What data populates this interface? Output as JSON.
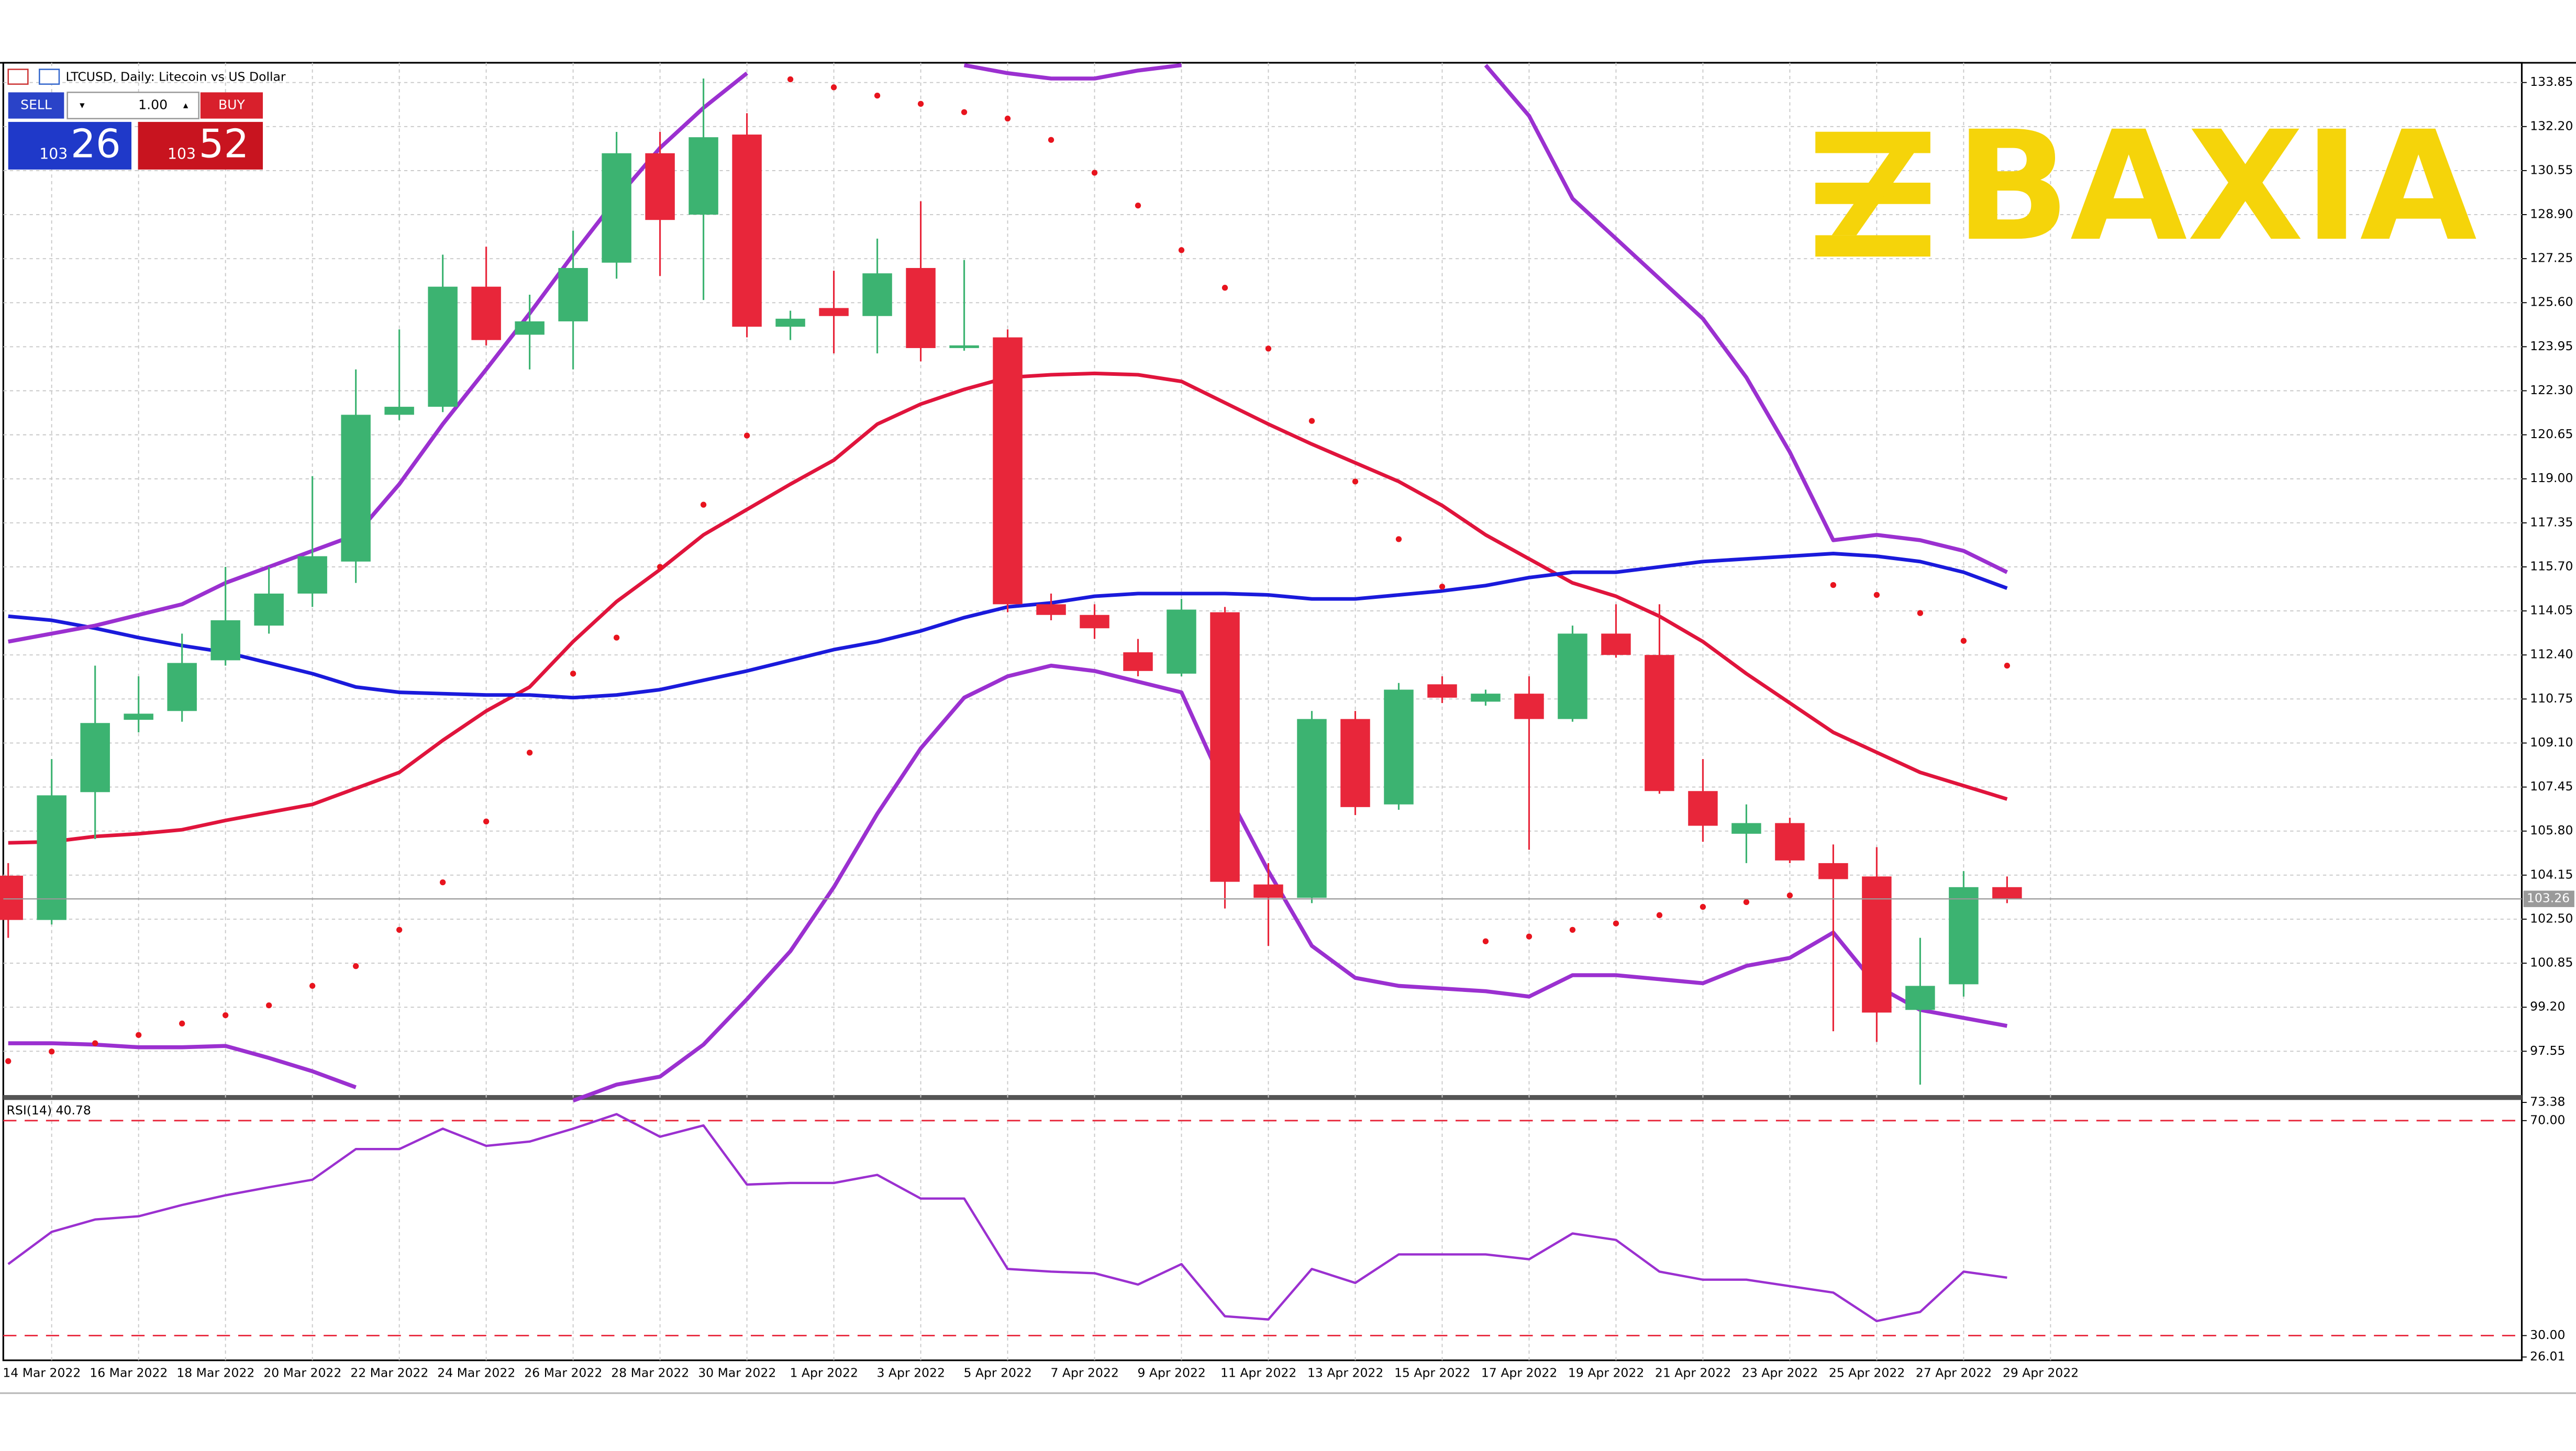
{
  "header": {
    "title": "LTCUSD, Daily:  Litecoin vs US Dollar"
  },
  "trade_panel": {
    "sell": "SELL",
    "buy": "BUY",
    "volume": "1.00",
    "bid_big": "103",
    "bid_small": "26",
    "ask_big": "103",
    "ask_small": "52"
  },
  "logo": {
    "text": "BAXIA"
  },
  "chart_data": [
    {
      "type": "candlestick",
      "up_color": "#3cb371",
      "down_color": "#e8263a",
      "categories": [
        null,
        "14 Mar 2022",
        null,
        "16 Mar 2022",
        null,
        "18 Mar 2022",
        null,
        "20 Mar 2022",
        null,
        "22 Mar 2022",
        null,
        "24 Mar 2022",
        null,
        "26 Mar 2022",
        null,
        "28 Mar 2022",
        null,
        "30 Mar 2022",
        null,
        "1 Apr 2022",
        null,
        "3 Apr 2022",
        null,
        "5 Apr 2022",
        null,
        "7 Apr 2022",
        null,
        "9 Apr 2022",
        null,
        "11 Apr 2022",
        null,
        "13 Apr 2022",
        null,
        "15 Apr 2022",
        null,
        "17 Apr 2022",
        null,
        "19 Apr 2022",
        null,
        "21 Apr 2022",
        null,
        "23 Apr 2022",
        null,
        "25 Apr 2022",
        null,
        "27 Apr 2022",
        null,
        "29 Apr 2022"
      ],
      "open": [
        104.13,
        102.47,
        107.26,
        109.97,
        110.3,
        112.2,
        113.5,
        114.7,
        115.9,
        121.4,
        121.7,
        126.2,
        124.4,
        124.9,
        127.1,
        131.2,
        128.9,
        131.9,
        124.7,
        125.4,
        125.1,
        126.9,
        123.9,
        124.3,
        114.3,
        113.9,
        112.5,
        111.7,
        114.0,
        103.8,
        103.3,
        110.0,
        106.8,
        111.3,
        110.65,
        110.95,
        110.0,
        113.2,
        112.4,
        107.3,
        105.7,
        106.1,
        104.6,
        104.1,
        99.1,
        100.06,
        103.7,
        null
      ],
      "high": [
        104.6,
        108.5,
        112.0,
        111.6,
        113.2,
        115.7,
        115.7,
        119.1,
        123.1,
        124.6,
        127.4,
        127.7,
        125.9,
        128.3,
        132.0,
        132.0,
        134.0,
        132.7,
        125.3,
        126.8,
        128.0,
        129.4,
        127.2,
        124.6,
        114.7,
        114.3,
        113.0,
        114.5,
        114.2,
        104.6,
        110.3,
        110.3,
        111.35,
        111.6,
        111.1,
        111.6,
        113.5,
        114.3,
        114.3,
        108.5,
        106.8,
        106.3,
        105.3,
        105.2,
        101.8,
        104.3,
        104.1,
        null
      ],
      "low": [
        101.8,
        102.3,
        105.5,
        109.5,
        109.9,
        112.0,
        113.2,
        114.2,
        115.1,
        121.2,
        121.5,
        124.0,
        123.1,
        123.1,
        126.5,
        126.6,
        125.7,
        124.3,
        124.2,
        123.7,
        123.7,
        123.4,
        123.8,
        114.0,
        113.7,
        113.0,
        111.6,
        111.6,
        102.9,
        101.5,
        103.1,
        106.4,
        106.6,
        110.6,
        110.5,
        105.1,
        109.9,
        112.3,
        107.2,
        105.4,
        104.6,
        104.6,
        98.3,
        97.9,
        96.3,
        99.6,
        103.1,
        null
      ],
      "close": [
        102.47,
        107.14,
        109.85,
        110.2,
        112.1,
        113.7,
        114.7,
        116.1,
        121.4,
        121.7,
        126.2,
        124.2,
        124.9,
        126.9,
        131.2,
        128.7,
        131.8,
        124.7,
        125.0,
        125.1,
        126.7,
        123.9,
        124.0,
        114.3,
        113.9,
        113.4,
        111.8,
        114.1,
        103.9,
        103.3,
        110.0,
        106.7,
        111.1,
        110.8,
        110.95,
        110.0,
        113.2,
        112.4,
        107.3,
        106.0,
        106.1,
        104.7,
        104.0,
        99.0,
        100.0,
        103.7,
        103.26,
        null
      ],
      "lines": [
        {
          "color": "#e0143c",
          "width": 2.2,
          "values": [
            105.36,
            105.4,
            105.6,
            105.7,
            105.85,
            106.2,
            106.5,
            106.8,
            107.4,
            108.0,
            109.2,
            110.3,
            111.2,
            112.9,
            114.4,
            115.6,
            116.9,
            117.85,
            118.8,
            119.7,
            121.05,
            121.8,
            122.35,
            122.8,
            122.9,
            122.95,
            122.9,
            122.65,
            121.85,
            121.05,
            120.3,
            119.6,
            118.9,
            118.0,
            116.9,
            116.0,
            115.1,
            114.6,
            113.85,
            112.9,
            111.7,
            110.6,
            109.5,
            108.75,
            108.0,
            107.5,
            107.0,
            null
          ]
        },
        {
          "color": "#1a1adb",
          "width": 2.2,
          "values": [
            113.85,
            113.7,
            113.4,
            113.05,
            112.75,
            112.5,
            112.1,
            111.7,
            111.2,
            111.0,
            110.95,
            110.9,
            110.9,
            110.8,
            110.9,
            111.1,
            111.45,
            111.8,
            112.2,
            112.6,
            112.9,
            113.3,
            113.8,
            114.2,
            114.35,
            114.6,
            114.7,
            114.7,
            114.7,
            114.65,
            114.5,
            114.5,
            114.65,
            114.8,
            115.0,
            115.3,
            115.5,
            115.5,
            115.7,
            115.9,
            116.0,
            116.1,
            116.2,
            116.1,
            115.9,
            115.5,
            114.9,
            null
          ]
        },
        {
          "color": "#9b30d0",
          "width": 2.4,
          "values": [
            112.9,
            113.2,
            113.5,
            113.9,
            114.3,
            115.1,
            115.7,
            116.3,
            116.9,
            118.8,
            121.05,
            123.1,
            125.2,
            127.4,
            129.5,
            131.4,
            132.9,
            134.2,
            null,
            null,
            null,
            null,
            134.5,
            134.2,
            134.0,
            134.0,
            134.3,
            134.5,
            null,
            null,
            null,
            null,
            null,
            null,
            134.5,
            132.6,
            129.5,
            128.0,
            126.5,
            125.0,
            122.8,
            120.0,
            116.7,
            116.9,
            116.7,
            116.3,
            115.5,
            null
          ]
        },
        {
          "color": "#9b30d0",
          "width": 2.4,
          "values": [
            97.85,
            97.85,
            97.8,
            97.7,
            97.7,
            97.75,
            97.3,
            96.8,
            96.2,
            null,
            null,
            null,
            null,
            95.7,
            96.3,
            96.6,
            97.8,
            99.5,
            101.3,
            103.7,
            106.45,
            108.9,
            110.8,
            111.6,
            112.0,
            111.8,
            111.4,
            111.0,
            107.4,
            104.3,
            101.5,
            100.3,
            100.0,
            99.9,
            99.8,
            99.6,
            100.4,
            100.4,
            100.25,
            100.1,
            100.75,
            101.05,
            102.0,
            100.0,
            99.1,
            98.8,
            98.5,
            null
          ]
        }
      ],
      "sar": {
        "color": "#e8141e",
        "values": [
          97.18,
          97.54,
          97.85,
          98.16,
          98.59,
          98.9,
          99.27,
          100.0,
          100.74,
          102.1,
          103.88,
          106.16,
          108.74,
          111.7,
          113.05,
          115.7,
          118.03,
          120.62,
          133.97,
          133.67,
          133.36,
          133.05,
          132.74,
          132.5,
          131.7,
          130.47,
          129.24,
          127.57,
          126.16,
          123.88,
          121.17,
          118.9,
          116.74,
          114.96,
          101.67,
          101.85,
          102.1,
          102.34,
          102.65,
          102.96,
          103.14,
          103.39,
          115.02,
          114.65,
          113.97,
          112.93,
          112.0,
          null
        ]
      },
      "ylim": [
        95.94,
        134.59
      ],
      "yticks": [
        133.85,
        {
          "value": 132.2,
          "label": "132.20"
        },
        130.55,
        {
          "value": 128.9,
          "label": "128.90"
        },
        127.25,
        {
          "value": 125.6,
          "label": "125.60"
        },
        123.95,
        {
          "value": 122.3,
          "label": "122.30"
        },
        120.65,
        {
          "value": 119,
          "label": "119.00"
        },
        117.35,
        {
          "value": 115.7,
          "label": "115.70"
        },
        114.05,
        {
          "value": 112.4,
          "label": "112.40"
        },
        110.75,
        {
          "value": 109.1,
          "label": "109.10"
        },
        107.45,
        {
          "value": 105.8,
          "label": "105.80"
        },
        104.15,
        {
          "value": 102.5,
          "label": "102.50"
        },
        100.85,
        {
          "value": 99.2,
          "label": "99.20"
        },
        97.55
      ],
      "last_price": 103.26,
      "grid": true
    },
    {
      "type": "line",
      "label": "RSI(14)",
      "color": "#9b30d0",
      "values": [
        43.3,
        49.3,
        51.6,
        52.2,
        54.3,
        56.1,
        57.6,
        59.0,
        64.7,
        64.7,
        68.5,
        65.3,
        66.1,
        68.5,
        71.2,
        67.0,
        69.1,
        58.1,
        58.4,
        58.4,
        59.9,
        55.5,
        55.5,
        42.4,
        41.9,
        41.6,
        39.5,
        43.3,
        33.6,
        33.0,
        42.4,
        39.8,
        45.1,
        45.1,
        45.1,
        44.2,
        49.0,
        47.8,
        41.9,
        40.4,
        40.4,
        39.2,
        38.0,
        32.7,
        34.4,
        41.9,
        40.78,
        null
      ],
      "ylim": [
        26.01,
        73.38
      ],
      "yticks": [
        73.38,
        {
          "value": 70,
          "label": "70.00"
        },
        {
          "value": 30,
          "label": "30.00"
        },
        26.01
      ],
      "hlines": {
        "color": "#e8263a",
        "values": [
          70,
          30
        ]
      }
    }
  ]
}
